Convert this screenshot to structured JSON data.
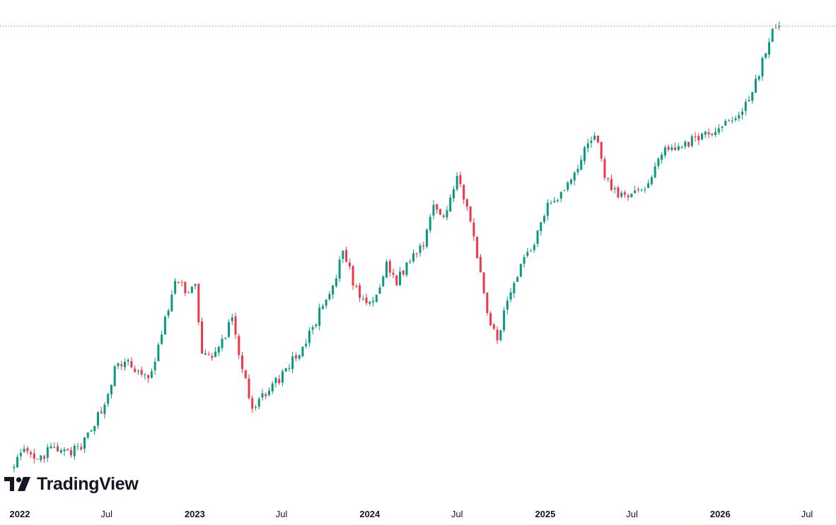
{
  "logo": {
    "text": "TradingView",
    "icon": "tradingview-logo-icon"
  },
  "colors": {
    "up": "#089981",
    "down": "#F23645",
    "axis_text": "#131722",
    "high_line": "#089981"
  },
  "chart_data": {
    "type": "candlestick",
    "interval": "weekly",
    "x_range": [
      "2022-01-01",
      "2026-07-01"
    ],
    "y_range_relative": [
      0,
      100
    ],
    "price_scale_visible": false,
    "grid": false,
    "x_ticks": [
      {
        "date": "2022-01-01",
        "label": "2022",
        "bold": true
      },
      {
        "date": "2022-07-01",
        "label": "Jul",
        "bold": false
      },
      {
        "date": "2023-01-01",
        "label": "2023",
        "bold": true
      },
      {
        "date": "2023-07-01",
        "label": "Jul",
        "bold": false
      },
      {
        "date": "2024-01-01",
        "label": "2024",
        "bold": true
      },
      {
        "date": "2024-07-01",
        "label": "Jul",
        "bold": false
      },
      {
        "date": "2025-01-01",
        "label": "2025",
        "bold": true
      },
      {
        "date": "2025-07-01",
        "label": "Jul",
        "bold": false
      },
      {
        "date": "2026-01-01",
        "label": "2026",
        "bold": true
      },
      {
        "date": "2026-07-01",
        "label": "Jul",
        "bold": false
      }
    ],
    "close_path": [
      [
        "2021-12-20",
        1
      ],
      [
        "2022-01-10",
        3
      ],
      [
        "2022-02-07",
        1
      ],
      [
        "2022-03-07",
        4
      ],
      [
        "2022-04-04",
        3
      ],
      [
        "2022-05-09",
        4
      ],
      [
        "2022-05-30",
        9
      ],
      [
        "2022-06-27",
        14
      ],
      [
        "2022-07-18",
        22
      ],
      [
        "2022-08-15",
        24
      ],
      [
        "2022-09-12",
        20
      ],
      [
        "2022-10-03",
        21
      ],
      [
        "2022-10-24",
        30
      ],
      [
        "2022-11-21",
        42
      ],
      [
        "2022-12-12",
        40
      ],
      [
        "2023-01-02",
        41
      ],
      [
        "2023-01-16",
        26
      ],
      [
        "2023-02-06",
        24
      ],
      [
        "2023-03-06",
        30
      ],
      [
        "2023-03-20",
        34
      ],
      [
        "2023-04-03",
        26
      ],
      [
        "2023-05-01",
        12
      ],
      [
        "2023-05-29",
        17
      ],
      [
        "2023-06-26",
        20
      ],
      [
        "2023-07-24",
        24
      ],
      [
        "2023-08-21",
        28
      ],
      [
        "2023-09-18",
        35
      ],
      [
        "2023-10-16",
        40
      ],
      [
        "2023-11-06",
        49
      ],
      [
        "2023-11-27",
        42
      ],
      [
        "2023-12-18",
        37
      ],
      [
        "2024-01-15",
        38
      ],
      [
        "2024-02-05",
        46
      ],
      [
        "2024-02-26",
        42
      ],
      [
        "2024-03-25",
        47
      ],
      [
        "2024-04-22",
        51
      ],
      [
        "2024-05-13",
        60
      ],
      [
        "2024-06-03",
        57
      ],
      [
        "2024-07-01",
        65
      ],
      [
        "2024-07-22",
        60
      ],
      [
        "2024-08-12",
        47
      ],
      [
        "2024-09-02",
        35
      ],
      [
        "2024-09-23",
        28
      ],
      [
        "2024-10-14",
        38
      ],
      [
        "2024-11-11",
        46
      ],
      [
        "2024-12-09",
        51
      ],
      [
        "2025-01-06",
        60
      ],
      [
        "2025-02-03",
        62
      ],
      [
        "2025-03-03",
        66
      ],
      [
        "2025-03-24",
        72
      ],
      [
        "2025-04-14",
        76
      ],
      [
        "2025-05-05",
        66
      ],
      [
        "2025-06-02",
        61
      ],
      [
        "2025-06-23",
        62
      ],
      [
        "2025-07-21",
        62
      ],
      [
        "2025-08-18",
        68
      ],
      [
        "2025-09-15",
        73
      ],
      [
        "2025-10-13",
        72
      ],
      [
        "2025-11-10",
        75
      ],
      [
        "2025-12-08",
        75
      ],
      [
        "2026-01-12",
        78
      ],
      [
        "2026-02-09",
        80
      ],
      [
        "2026-03-09",
        85
      ],
      [
        "2026-03-30",
        92
      ],
      [
        "2026-04-20",
        99
      ],
      [
        "2026-05-04",
        100
      ]
    ],
    "all_time_high_line": true
  }
}
